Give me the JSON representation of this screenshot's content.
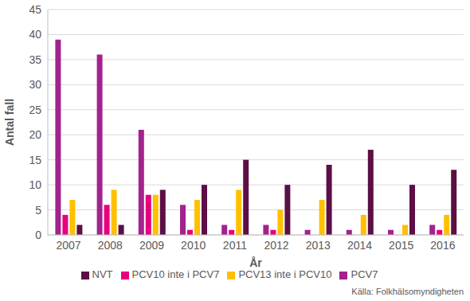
{
  "chart_data": {
    "type": "bar",
    "xlabel": "År",
    "ylabel": "Antal fall",
    "categories": [
      "2007",
      "2008",
      "2009",
      "2010",
      "2011",
      "2012",
      "2013",
      "2014",
      "2015",
      "2016"
    ],
    "series": [
      {
        "name": "PCV7",
        "color": "#A3228E",
        "values": [
          39,
          36,
          21,
          6,
          2,
          2,
          1,
          1,
          1,
          2
        ]
      },
      {
        "name": "PCV10 inte i PCV7",
        "color": "#E6007E",
        "values": [
          4,
          6,
          8,
          1,
          1,
          1,
          0,
          0,
          0,
          1
        ]
      },
      {
        "name": "PCV13 inte i PCV10",
        "color": "#FFC000",
        "values": [
          7,
          9,
          8,
          7,
          9,
          5,
          7,
          4,
          2,
          4
        ]
      },
      {
        "name": "NVT",
        "color": "#5C0F45",
        "values": [
          2,
          2,
          9,
          10,
          15,
          10,
          14,
          17,
          10,
          13
        ]
      }
    ],
    "ylim": [
      0,
      45
    ],
    "yticks": [
      0,
      5,
      10,
      15,
      20,
      25,
      30,
      35,
      40,
      45
    ],
    "grid": true,
    "legend": "bottom",
    "annotations": [
      "Källa: Folkhälsomyndigheten"
    ]
  }
}
